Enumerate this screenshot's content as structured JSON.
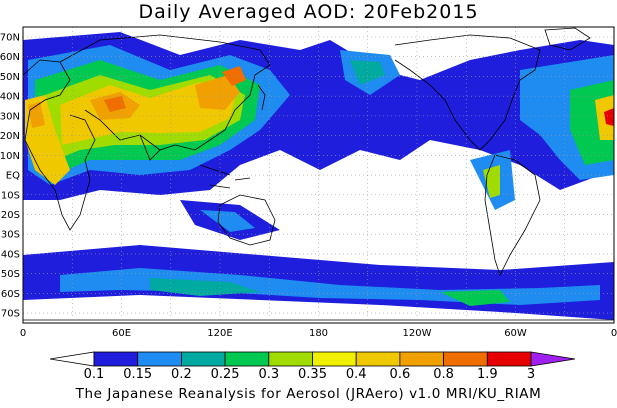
{
  "title": "Daily Averaged AOD: 20Feb2015",
  "map": {
    "lat_labels": [
      "70N",
      "60N",
      "50N",
      "40N",
      "30N",
      "20N",
      "10N",
      "EQ",
      "10S",
      "20S",
      "30S",
      "40S",
      "50S",
      "60S",
      "70S"
    ],
    "lon_labels": [
      "0",
      "60E",
      "120E",
      "180",
      "120W",
      "60W",
      "0"
    ],
    "grid": "dotted",
    "ocean_color": "#ffffff",
    "coast_color": "#000000"
  },
  "colorbar": {
    "levels": [
      "0.1",
      "0.15",
      "0.2",
      "0.25",
      "0.3",
      "0.35",
      "0.4",
      "0.6",
      "0.8",
      "1.9",
      "3"
    ],
    "colors": [
      "#ffffff",
      "#1e1edc",
      "#1e8cf0",
      "#00aaa0",
      "#00c850",
      "#a0dc00",
      "#f0f000",
      "#f0c800",
      "#f0a000",
      "#f06e00",
      "#e60000",
      "#a020f0"
    ]
  },
  "credit": "The Japanese Reanalysis for Aerosol (JRAero) v1.0 MRI/KU_RIAM"
}
